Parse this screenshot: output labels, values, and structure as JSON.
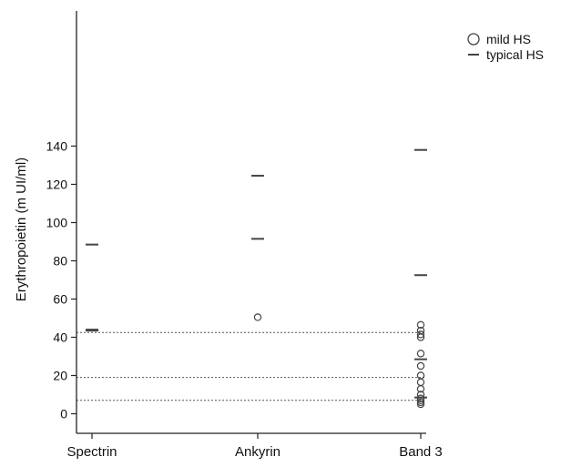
{
  "chart_data": {
    "type": "scatter",
    "title": "",
    "xlabel": "",
    "ylabel": "Erythropoietin (m UI/ml)",
    "categories": [
      "Spectrin",
      "Ankyrin",
      "Band 3"
    ],
    "ylim": [
      -7,
      148
    ],
    "yticks": [
      0,
      20,
      40,
      60,
      80,
      100,
      120,
      140
    ],
    "reference_lines": [
      7,
      19,
      42.5
    ],
    "legend": {
      "placement": "top-right",
      "entries": [
        {
          "label": "mild HS",
          "marker": "circle"
        },
        {
          "label": "typical HS",
          "marker": "dash"
        }
      ]
    },
    "series": [
      {
        "name": "mild HS",
        "marker": "circle",
        "points": [
          {
            "category": "Ankyrin",
            "y": 50.5
          },
          {
            "category": "Band 3",
            "y": 46.5
          },
          {
            "category": "Band 3",
            "y": 43.5
          },
          {
            "category": "Band 3",
            "y": 41.5
          },
          {
            "category": "Band 3",
            "y": 40
          },
          {
            "category": "Band 3",
            "y": 31.5
          },
          {
            "category": "Band 3",
            "y": 25
          },
          {
            "category": "Band 3",
            "y": 20
          },
          {
            "category": "Band 3",
            "y": 16.5
          },
          {
            "category": "Band 3",
            "y": 13
          },
          {
            "category": "Band 3",
            "y": 10
          },
          {
            "category": "Band 3",
            "y": 8
          },
          {
            "category": "Band 3",
            "y": 7
          },
          {
            "category": "Band 3",
            "y": 6
          },
          {
            "category": "Band 3",
            "y": 5
          }
        ]
      },
      {
        "name": "typical HS",
        "marker": "dash",
        "points": [
          {
            "category": "Spectrin",
            "y": 88.5
          },
          {
            "category": "Spectrin",
            "y": 44
          },
          {
            "category": "Spectrin",
            "y": 43.5
          },
          {
            "category": "Ankyrin",
            "y": 124.5
          },
          {
            "category": "Ankyrin",
            "y": 91.5
          },
          {
            "category": "Band 3",
            "y": 138
          },
          {
            "category": "Band 3",
            "y": 72.5
          },
          {
            "category": "Band 3",
            "y": 28.5
          },
          {
            "category": "Band 3",
            "y": 8.5
          }
        ]
      }
    ]
  }
}
